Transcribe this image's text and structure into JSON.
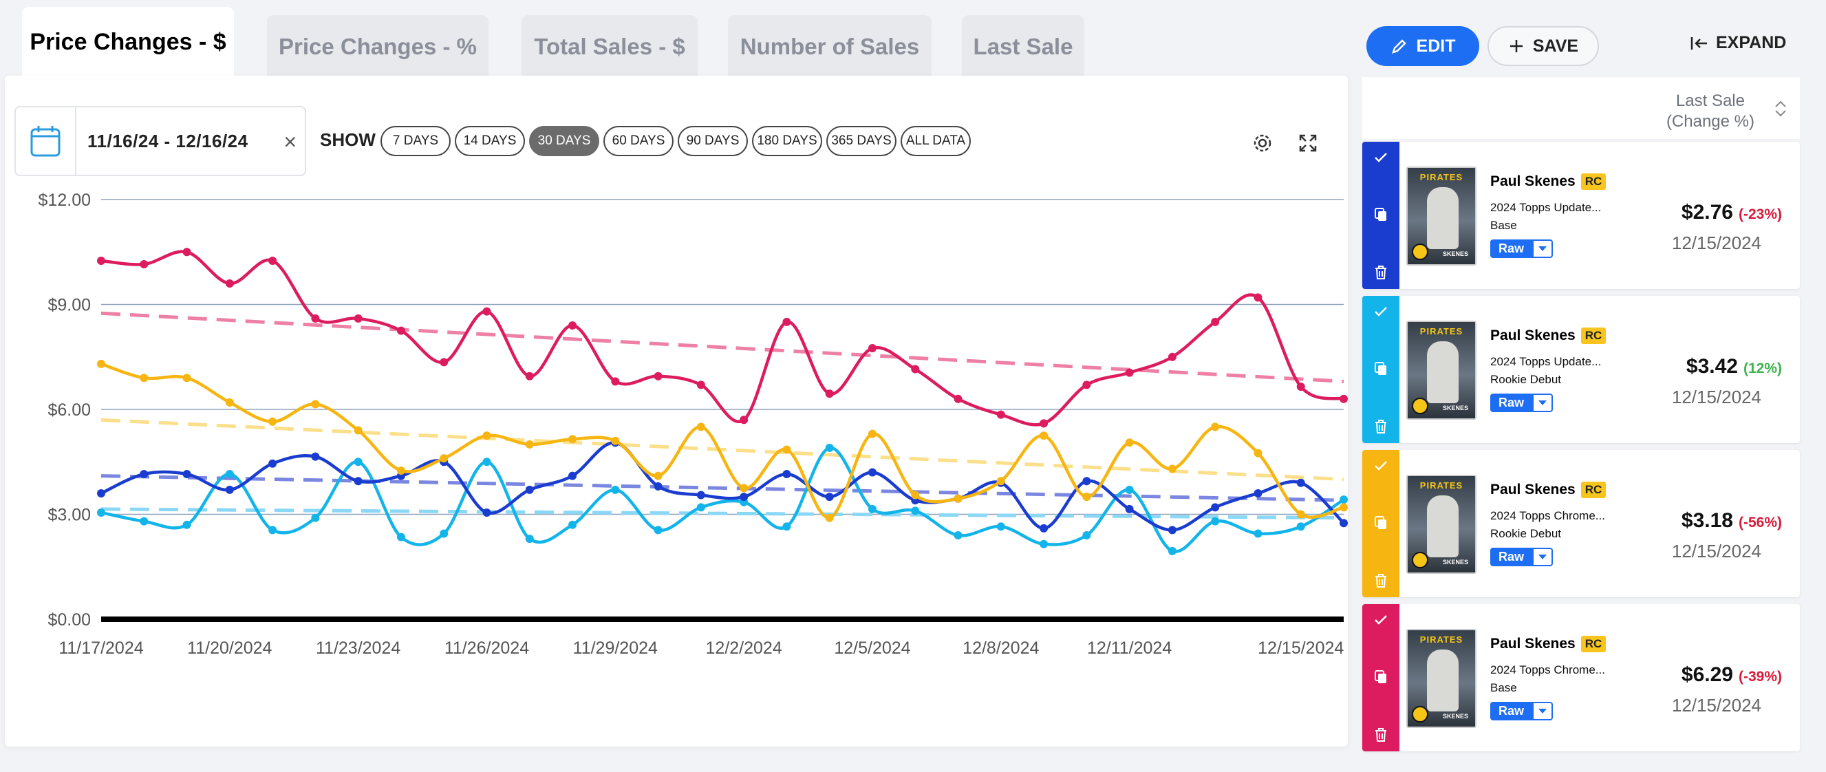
{
  "tabs": [
    {
      "label": "Price Changes - $",
      "active": true
    },
    {
      "label": "Price Changes - %",
      "active": false
    },
    {
      "label": "Total Sales - $",
      "active": false
    },
    {
      "label": "Number of Sales",
      "active": false
    },
    {
      "label": "Last Sale",
      "active": false
    }
  ],
  "toolbar": {
    "date_range": "11/16/24 - 12/16/24",
    "show_label": "SHOW",
    "ranges": [
      "7 DAYS",
      "14 DAYS",
      "30 DAYS",
      "60 DAYS",
      "90 DAYS",
      "180 DAYS",
      "365 DAYS",
      "ALL DATA"
    ],
    "selected_range": "30 DAYS"
  },
  "actions": {
    "edit": "EDIT",
    "save": "SAVE",
    "expand": "EXPAND"
  },
  "sidebar": {
    "header_line1": "Last Sale",
    "header_line2": "(Change %)",
    "cards": [
      {
        "color": "#1a3ccf",
        "name": "Paul Skenes",
        "badge": "RC",
        "set": "2024 Topps Update...",
        "variant": "Base",
        "grade": "Raw",
        "price": "$2.76",
        "change": "(-23%)",
        "change_color": "#d81b3a",
        "date": "12/15/2024",
        "card_team": "PIRATES",
        "card_name": "SKENES"
      },
      {
        "color": "#13b4ea",
        "name": "Paul Skenes",
        "badge": "RC",
        "set": "2024 Topps Update...",
        "variant": "Rookie Debut",
        "grade": "Raw",
        "price": "$3.42",
        "change": "(12%)",
        "change_color": "#3bb54a",
        "date": "12/15/2024",
        "card_team": "PIRATES",
        "card_name": "SKENES"
      },
      {
        "color": "#f7b511",
        "name": "Paul Skenes",
        "badge": "RC",
        "set": "2024 Topps Chrome...",
        "variant": "Rookie Debut",
        "grade": "Raw",
        "price": "$3.18",
        "change": "(-56%)",
        "change_color": "#d81b3a",
        "date": "12/15/2024",
        "card_team": "PIRATES",
        "card_name": "SKENES"
      },
      {
        "color": "#dc1c5e",
        "name": "Paul Skenes",
        "badge": "RC",
        "set": "2024 Topps Chrome...",
        "variant": "Base",
        "grade": "Raw",
        "price": "$6.29",
        "change": "(-39%)",
        "change_color": "#d81b3a",
        "date": "12/15/2024",
        "card_team": "PIRATES",
        "card_name": "SKENES"
      }
    ]
  },
  "chart_data": {
    "type": "line",
    "title": "",
    "xlabel": "",
    "ylabel": "",
    "ylim": [
      0,
      12
    ],
    "yticks": [
      "$0.00",
      "$3.00",
      "$6.00",
      "$9.00",
      "$12.00"
    ],
    "ytick_values": [
      0,
      3,
      6,
      9,
      12
    ],
    "xtick_labels": [
      "11/17/2024",
      "11/20/2024",
      "11/23/2024",
      "11/26/2024",
      "11/29/2024",
      "12/2/2024",
      "12/5/2024",
      "12/8/2024",
      "12/11/2024",
      "12/15/2024"
    ],
    "xtick_index": [
      0,
      3,
      6,
      9,
      12,
      15,
      18,
      21,
      24,
      28
    ],
    "x_count": 30,
    "grid": true,
    "series": [
      {
        "color": "#dc1c5e",
        "trend_color": "#ee7fa5",
        "values": [
          10.25,
          10.15,
          10.5,
          9.6,
          10.25,
          8.6,
          8.6,
          8.25,
          7.35,
          8.8,
          6.95,
          8.4,
          6.8,
          6.95,
          6.7,
          5.7,
          8.5,
          6.45,
          7.75,
          7.15,
          6.3,
          5.85,
          5.6,
          6.7,
          7.05,
          7.5,
          8.5,
          9.2,
          6.65,
          6.3
        ],
        "trend": [
          8.75,
          6.8
        ]
      },
      {
        "color": "#f7b511",
        "trend_color": "#fcdf8a",
        "values": [
          7.3,
          6.9,
          6.9,
          6.2,
          5.65,
          6.15,
          5.4,
          4.25,
          4.6,
          5.25,
          5.0,
          5.15,
          5.1,
          4.1,
          5.5,
          3.75,
          4.85,
          2.9,
          5.3,
          3.55,
          3.45,
          3.95,
          5.25,
          3.5,
          5.05,
          4.3,
          5.5,
          4.75,
          3.0,
          3.2
        ],
        "trend": [
          5.7,
          4.0
        ]
      },
      {
        "color": "#1a3ccf",
        "trend_color": "#7a86e0",
        "values": [
          3.6,
          4.15,
          4.15,
          3.7,
          4.45,
          4.65,
          3.95,
          4.1,
          4.5,
          3.05,
          3.7,
          4.1,
          5.05,
          3.8,
          3.55,
          3.5,
          4.15,
          3.5,
          4.2,
          3.4,
          3.45,
          3.9,
          2.6,
          3.95,
          3.15,
          2.55,
          3.2,
          3.6,
          3.9,
          2.75
        ],
        "trend": [
          4.1,
          3.4
        ]
      },
      {
        "color": "#13b4ea",
        "trend_color": "#8ad8f5",
        "values": [
          3.05,
          2.8,
          2.7,
          4.15,
          2.55,
          2.9,
          4.5,
          2.35,
          2.45,
          4.5,
          2.3,
          2.7,
          3.7,
          2.55,
          3.2,
          3.35,
          2.65,
          4.9,
          3.15,
          3.1,
          2.4,
          2.65,
          2.15,
          2.4,
          3.7,
          1.95,
          2.8,
          2.45,
          2.65,
          3.42
        ],
        "trend": [
          3.15,
          2.9
        ]
      }
    ]
  }
}
